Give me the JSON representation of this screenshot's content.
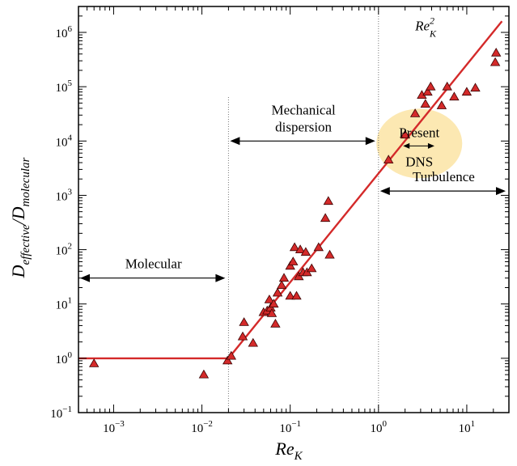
{
  "chart_data": {
    "type": "scatter",
    "x_scale": "log",
    "y_scale": "log",
    "xlim": [
      0.0004,
      30
    ],
    "ylim": [
      0.1,
      3000000
    ],
    "xlabel_base": "Re",
    "xlabel_sub": "K",
    "ylabel_base_1": "D",
    "ylabel_sub_1": "effective",
    "ylabel_sep": "/",
    "ylabel_base_2": "D",
    "ylabel_sub_2": "molecular",
    "x_ticks": [
      {
        "value": 0.001,
        "base": "10",
        "exp": "−3"
      },
      {
        "value": 0.01,
        "base": "10",
        "exp": "−2"
      },
      {
        "value": 0.1,
        "base": "10",
        "exp": "−1"
      },
      {
        "value": 1,
        "base": "10",
        "exp": "0"
      },
      {
        "value": 10,
        "base": "10",
        "exp": "1"
      }
    ],
    "y_ticks": [
      {
        "value": 0.1,
        "base": "10",
        "exp": "−1"
      },
      {
        "value": 1,
        "base": "10",
        "exp": "0"
      },
      {
        "value": 10,
        "base": "10",
        "exp": "1"
      },
      {
        "value": 100,
        "base": "10",
        "exp": "2"
      },
      {
        "value": 1000,
        "base": "10",
        "exp": "3"
      },
      {
        "value": 10000,
        "base": "10",
        "exp": "4"
      },
      {
        "value": 100000,
        "base": "10",
        "exp": "5"
      },
      {
        "value": 1000000,
        "base": "10",
        "exp": "6"
      }
    ],
    "regions": [
      {
        "label": "Molecular",
        "lines": [
          "Molecular"
        ],
        "x_from": 0.0004,
        "x_to": 0.02,
        "y": 30
      },
      {
        "label": "Mechanical dispersion",
        "lines": [
          "Mechanical",
          "dispersion"
        ],
        "x_from": 0.02,
        "x_to": 1,
        "y": 10000
      },
      {
        "label": "Turbulence",
        "lines": [
          "Turbulence"
        ],
        "x_from": 1,
        "x_to": 30,
        "y": 1200
      }
    ],
    "region_boundaries_x": [
      0.02,
      1
    ],
    "fit_line": [
      {
        "x": 0.0004,
        "y": 1
      },
      {
        "x": 0.02,
        "y": 1
      },
      {
        "x": 25,
        "y": 1600000
      }
    ],
    "fit_label": {
      "base": "Re",
      "sup": "2",
      "sub": "K",
      "x": 2.6,
      "y": 1100000
    },
    "highlight": {
      "label_lines": [
        "Present",
        "DNS"
      ],
      "x_center": 2.9,
      "y_center": 9000,
      "x_from": 1.9,
      "x_to": 4.3,
      "fill": "#fce8b2"
    },
    "series": [
      {
        "marker": "triangle",
        "color": "#d42a2a",
        "points": [
          [
            0.0006,
            0.8
          ],
          [
            0.0105,
            0.5
          ],
          [
            0.0195,
            0.9
          ],
          [
            0.0215,
            1.1
          ],
          [
            0.029,
            2.5
          ],
          [
            0.03,
            4.6
          ],
          [
            0.038,
            1.9
          ],
          [
            0.05,
            7.0
          ],
          [
            0.055,
            7.5
          ],
          [
            0.058,
            12
          ],
          [
            0.06,
            8.5
          ],
          [
            0.062,
            6.7
          ],
          [
            0.065,
            10
          ],
          [
            0.068,
            4.3
          ],
          [
            0.072,
            16
          ],
          [
            0.08,
            22
          ],
          [
            0.085,
            30
          ],
          [
            0.1,
            50
          ],
          [
            0.1,
            14
          ],
          [
            0.108,
            60
          ],
          [
            0.112,
            110
          ],
          [
            0.118,
            14
          ],
          [
            0.125,
            32
          ],
          [
            0.13,
            100
          ],
          [
            0.14,
            38
          ],
          [
            0.15,
            90
          ],
          [
            0.155,
            38
          ],
          [
            0.175,
            45
          ],
          [
            0.21,
            110
          ],
          [
            0.25,
            380
          ],
          [
            0.27,
            780
          ],
          [
            0.28,
            80
          ],
          [
            1.3,
            4500
          ],
          [
            2.0,
            13000
          ],
          [
            2.6,
            32000
          ],
          [
            3.1,
            70000
          ],
          [
            3.4,
            48000
          ],
          [
            3.6,
            80000
          ],
          [
            3.9,
            100000
          ],
          [
            5.2,
            45000
          ],
          [
            6.0,
            100000
          ],
          [
            7.2,
            65000
          ],
          [
            10,
            80000
          ],
          [
            12.5,
            95000
          ],
          [
            21,
            280000
          ],
          [
            21.5,
            420000
          ]
        ]
      }
    ]
  }
}
